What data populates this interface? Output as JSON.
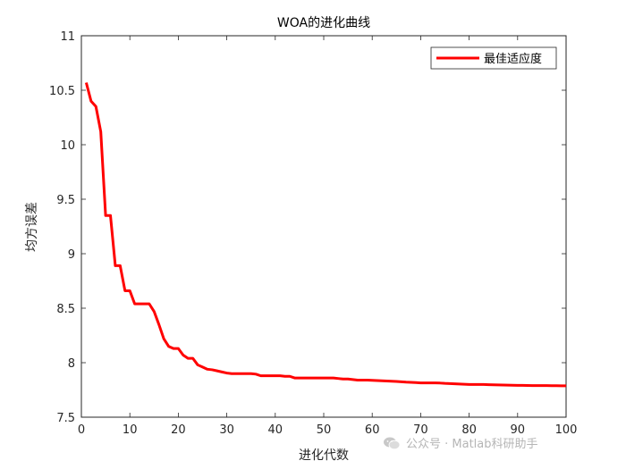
{
  "chart_data": {
    "type": "line",
    "title": "WOA的进化曲线",
    "xlabel": "进化代数",
    "ylabel": "均方误差",
    "xlim": [
      0,
      100
    ],
    "ylim": [
      7.5,
      11
    ],
    "xticks": [
      "0",
      "10",
      "20",
      "30",
      "40",
      "50",
      "60",
      "70",
      "80",
      "90",
      "100"
    ],
    "yticks": [
      "7.5",
      "8",
      "8.5",
      "9",
      "9.5",
      "10",
      "10.5",
      "11"
    ],
    "legend_position": "top-right",
    "grid": false,
    "series": [
      {
        "name": "最佳适应度",
        "color": "#ff0000",
        "x": [
          1,
          2,
          3,
          4,
          5,
          6,
          7,
          8,
          9,
          10,
          11,
          12,
          13,
          14,
          15,
          16,
          17,
          18,
          19,
          20,
          21,
          22,
          23,
          24,
          25,
          26,
          27,
          28,
          29,
          30,
          31,
          32,
          33,
          34,
          35,
          36,
          37,
          38,
          39,
          40,
          41,
          42,
          43,
          44,
          45,
          46,
          47,
          48,
          49,
          50,
          51,
          52,
          53,
          54,
          55,
          56,
          57,
          58,
          59,
          60,
          61,
          62,
          63,
          64,
          65,
          66,
          67,
          68,
          69,
          70,
          71,
          72,
          73,
          74,
          75,
          76,
          77,
          78,
          79,
          80,
          81,
          82,
          83,
          84,
          85,
          86,
          87,
          88,
          89,
          90,
          91,
          92,
          93,
          94,
          95,
          96,
          97,
          98,
          99,
          100
        ],
        "y": [
          10.57,
          10.4,
          10.35,
          10.12,
          9.35,
          9.35,
          8.89,
          8.89,
          8.66,
          8.66,
          8.54,
          8.54,
          8.54,
          8.54,
          8.47,
          8.35,
          8.22,
          8.15,
          8.13,
          8.13,
          8.07,
          8.04,
          8.04,
          7.98,
          7.96,
          7.94,
          7.935,
          7.925,
          7.915,
          7.905,
          7.9,
          7.9,
          7.9,
          7.9,
          7.9,
          7.895,
          7.88,
          7.88,
          7.88,
          7.88,
          7.88,
          7.875,
          7.875,
          7.86,
          7.86,
          7.86,
          7.86,
          7.86,
          7.86,
          7.86,
          7.86,
          7.86,
          7.855,
          7.85,
          7.85,
          7.845,
          7.84,
          7.84,
          7.84,
          7.838,
          7.836,
          7.834,
          7.832,
          7.83,
          7.828,
          7.825,
          7.822,
          7.82,
          7.818,
          7.815,
          7.815,
          7.815,
          7.815,
          7.813,
          7.81,
          7.808,
          7.806,
          7.804,
          7.802,
          7.8,
          7.8,
          7.8,
          7.8,
          7.798,
          7.797,
          7.796,
          7.795,
          7.794,
          7.793,
          7.792,
          7.792,
          7.791,
          7.79,
          7.79,
          7.79,
          7.79,
          7.789,
          7.789,
          7.788,
          7.788
        ]
      }
    ]
  },
  "watermark": {
    "text": "公众号 · Matlab科研助手",
    "icon": "wechat-icon"
  }
}
